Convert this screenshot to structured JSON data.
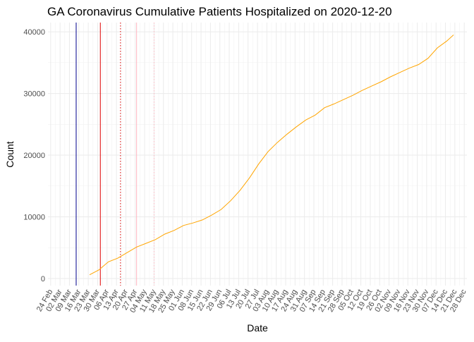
{
  "chart_data": {
    "type": "line",
    "title": "GA Coronavirus Cumulative Patients Hospitalized on 2020-12-20",
    "x_label": "Date",
    "y_label": "Count",
    "x": [
      "24 Mar",
      "31 Mar",
      "07 Apr",
      "14 Apr",
      "21 Apr",
      "28 Apr",
      "05 May",
      "12 May",
      "19 May",
      "26 May",
      "02 Jun",
      "09 Jun",
      "16 Jun",
      "23 Jun",
      "30 Jun",
      "07 Jul",
      "14 Jul",
      "21 Jul",
      "28 Jul",
      "04 Aug",
      "11 Aug",
      "18 Aug",
      "25 Aug",
      "01 Sep",
      "08 Sep",
      "15 Sep",
      "22 Sep",
      "29 Sep",
      "06 Oct",
      "13 Oct",
      "20 Oct",
      "27 Oct",
      "03 Nov",
      "10 Nov",
      "17 Nov",
      "24 Nov",
      "01 Dec",
      "08 Dec",
      "15 Dec",
      "20 Dec"
    ],
    "series": [
      {
        "color": "#ffa500",
        "values": [
          600,
          1400,
          2700,
          3300,
          4200,
          5100,
          5700,
          6300,
          7200,
          7800,
          8600,
          9000,
          9500,
          10300,
          11200,
          12600,
          14300,
          16300,
          18600,
          20600,
          22100,
          23400,
          24600,
          25700,
          26500,
          27700,
          28300,
          29000,
          29700,
          30500,
          31200,
          31900,
          32700,
          33400,
          34100,
          34700,
          35700,
          37400,
          38500,
          39500
        ]
      }
    ],
    "vlines": [
      {
        "x": "14 Mar",
        "color": "#00008b",
        "dash": false
      },
      {
        "x": "01 Apr",
        "color": "#dd0000",
        "dash": false
      },
      {
        "x": "16 Apr",
        "color": "#dd0000",
        "dash": true
      },
      {
        "x": "28 Apr",
        "color": "#ffb6c1",
        "dash": false
      },
      {
        "x": "11 May",
        "color": "#ffb6c1",
        "dash": true
      }
    ],
    "xlim": [
      "22 Feb",
      "30 Dec"
    ],
    "xticks": [
      "24 Feb",
      "02 Mar",
      "09 Mar",
      "16 Mar",
      "23 Mar",
      "30 Mar",
      "06 Apr",
      "13 Apr",
      "20 Apr",
      "27 Apr",
      "04 May",
      "11 May",
      "18 May",
      "25 May",
      "01 Jun",
      "08 Jun",
      "15 Jun",
      "22 Jun",
      "29 Jun",
      "06 Jul",
      "13 Jul",
      "20 Jul",
      "27 Jul",
      "03 Aug",
      "10 Aug",
      "17 Aug",
      "24 Aug",
      "31 Aug",
      "07 Sep",
      "14 Sep",
      "21 Sep",
      "28 Sep",
      "05 Oct",
      "12 Oct",
      "19 Oct",
      "26 Oct",
      "02 Nov",
      "09 Nov",
      "16 Nov",
      "23 Nov",
      "30 Nov",
      "07 Dec",
      "14 Dec",
      "21 Dec",
      "28 Dec"
    ],
    "ylim": [
      -1150,
      41500
    ],
    "yticks": [
      0,
      10000,
      20000,
      30000,
      40000
    ],
    "grid": true
  }
}
